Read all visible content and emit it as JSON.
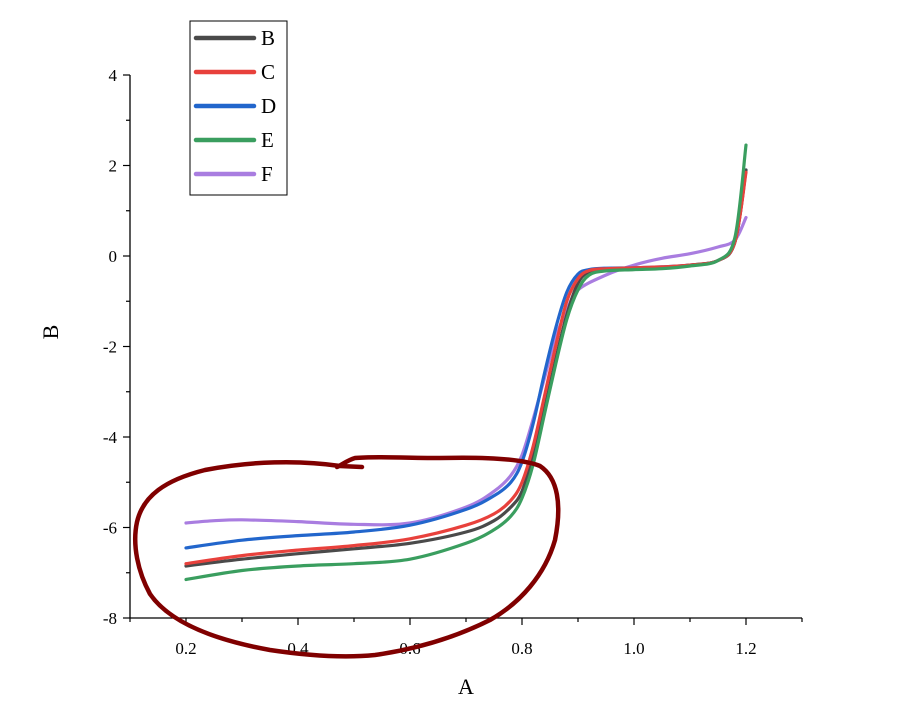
{
  "chart_data": {
    "type": "line",
    "title": "",
    "xlabel": "A",
    "ylabel": "B",
    "xlim": [
      0.1,
      1.3
    ],
    "ylim": [
      -8,
      4
    ],
    "x_ticks": [
      "0.2",
      "0.4",
      "0.6",
      "0.8",
      "1.0",
      "1.2"
    ],
    "x_tick_values": [
      0.2,
      0.4,
      0.6,
      0.8,
      1.0,
      1.2
    ],
    "y_ticks": [
      "4",
      "2",
      "0",
      "-2",
      "-4",
      "-6",
      "-8"
    ],
    "y_tick_values": [
      4,
      2,
      0,
      -2,
      -4,
      -6,
      -8
    ],
    "grid": false,
    "legend_position": "top-left",
    "series": [
      {
        "name": "B",
        "color": "#4a4a4a",
        "x": [
          0.2,
          0.3,
          0.4,
          0.5,
          0.6,
          0.7,
          0.75,
          0.78,
          0.8,
          0.82,
          0.84,
          0.86,
          0.88,
          0.9,
          0.92,
          0.95,
          1.0,
          1.05,
          1.1,
          1.15,
          1.18,
          1.2
        ],
        "y": [
          -6.85,
          -6.7,
          -6.58,
          -6.47,
          -6.35,
          -6.1,
          -5.85,
          -5.55,
          -5.2,
          -4.4,
          -3.4,
          -2.3,
          -1.3,
          -0.6,
          -0.35,
          -0.3,
          -0.28,
          -0.25,
          -0.2,
          -0.1,
          0.3,
          1.9
        ]
      },
      {
        "name": "C",
        "color": "#e8413c",
        "x": [
          0.2,
          0.3,
          0.4,
          0.5,
          0.6,
          0.7,
          0.75,
          0.78,
          0.8,
          0.82,
          0.84,
          0.86,
          0.88,
          0.9,
          0.92,
          0.95,
          1.0,
          1.05,
          1.1,
          1.15,
          1.18,
          1.2
        ],
        "y": [
          -6.8,
          -6.62,
          -6.5,
          -6.4,
          -6.25,
          -5.95,
          -5.7,
          -5.4,
          -5.0,
          -4.2,
          -3.1,
          -2.0,
          -1.0,
          -0.5,
          -0.32,
          -0.28,
          -0.26,
          -0.24,
          -0.2,
          -0.1,
          0.3,
          1.85
        ]
      },
      {
        "name": "D",
        "color": "#2266cc",
        "x": [
          0.2,
          0.3,
          0.4,
          0.5,
          0.6,
          0.7,
          0.75,
          0.78,
          0.8,
          0.82,
          0.84,
          0.86,
          0.88,
          0.9,
          0.92,
          0.95,
          1.0,
          1.05,
          1.1,
          1.15,
          1.18,
          1.2
        ],
        "y": [
          -6.45,
          -6.28,
          -6.18,
          -6.1,
          -5.95,
          -5.6,
          -5.3,
          -5.0,
          -4.55,
          -3.7,
          -2.6,
          -1.6,
          -0.8,
          -0.4,
          -0.3,
          -0.27,
          -0.26,
          -0.24,
          -0.2,
          -0.1,
          0.3,
          1.9
        ]
      },
      {
        "name": "E",
        "color": "#3a9e5f",
        "x": [
          0.2,
          0.3,
          0.4,
          0.5,
          0.6,
          0.7,
          0.75,
          0.78,
          0.8,
          0.82,
          0.84,
          0.86,
          0.88,
          0.9,
          0.92,
          0.95,
          1.0,
          1.05,
          1.1,
          1.15,
          1.18,
          1.2
        ],
        "y": [
          -7.15,
          -6.95,
          -6.85,
          -6.8,
          -6.7,
          -6.35,
          -6.05,
          -5.75,
          -5.35,
          -4.6,
          -3.5,
          -2.4,
          -1.4,
          -0.75,
          -0.42,
          -0.33,
          -0.3,
          -0.28,
          -0.22,
          -0.1,
          0.4,
          2.45
        ]
      },
      {
        "name": "F",
        "color": "#a97de0",
        "x": [
          0.2,
          0.25,
          0.3,
          0.4,
          0.5,
          0.6,
          0.7,
          0.75,
          0.78,
          0.8,
          0.82,
          0.84,
          0.86,
          0.88,
          0.9,
          0.95,
          1.0,
          1.05,
          1.1,
          1.15,
          1.18,
          1.2
        ],
        "y": [
          -5.9,
          -5.85,
          -5.83,
          -5.87,
          -5.93,
          -5.9,
          -5.55,
          -5.2,
          -4.85,
          -4.4,
          -3.6,
          -2.7,
          -1.8,
          -1.2,
          -0.75,
          -0.42,
          -0.2,
          -0.05,
          0.05,
          0.2,
          0.35,
          0.85
        ]
      }
    ]
  },
  "annotation": {
    "color": "#800000"
  }
}
